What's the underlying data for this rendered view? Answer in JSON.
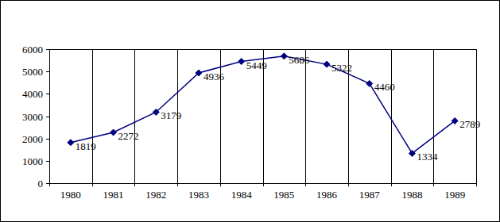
{
  "chart_data": {
    "type": "line",
    "categories": [
      "1980",
      "1981",
      "1982",
      "1983",
      "1984",
      "1985",
      "1986",
      "1987",
      "1988",
      "1989"
    ],
    "values": [
      1819,
      2272,
      3179,
      4936,
      5449,
      5686,
      5322,
      4460,
      1334,
      2789
    ],
    "color": "#000080",
    "marker": "diamond",
    "line_style": "solid",
    "ylim": [
      0,
      6000
    ],
    "yticks": [
      0,
      1000,
      2000,
      3000,
      4000,
      5000,
      6000
    ],
    "grid": true,
    "data_labels": true
  }
}
